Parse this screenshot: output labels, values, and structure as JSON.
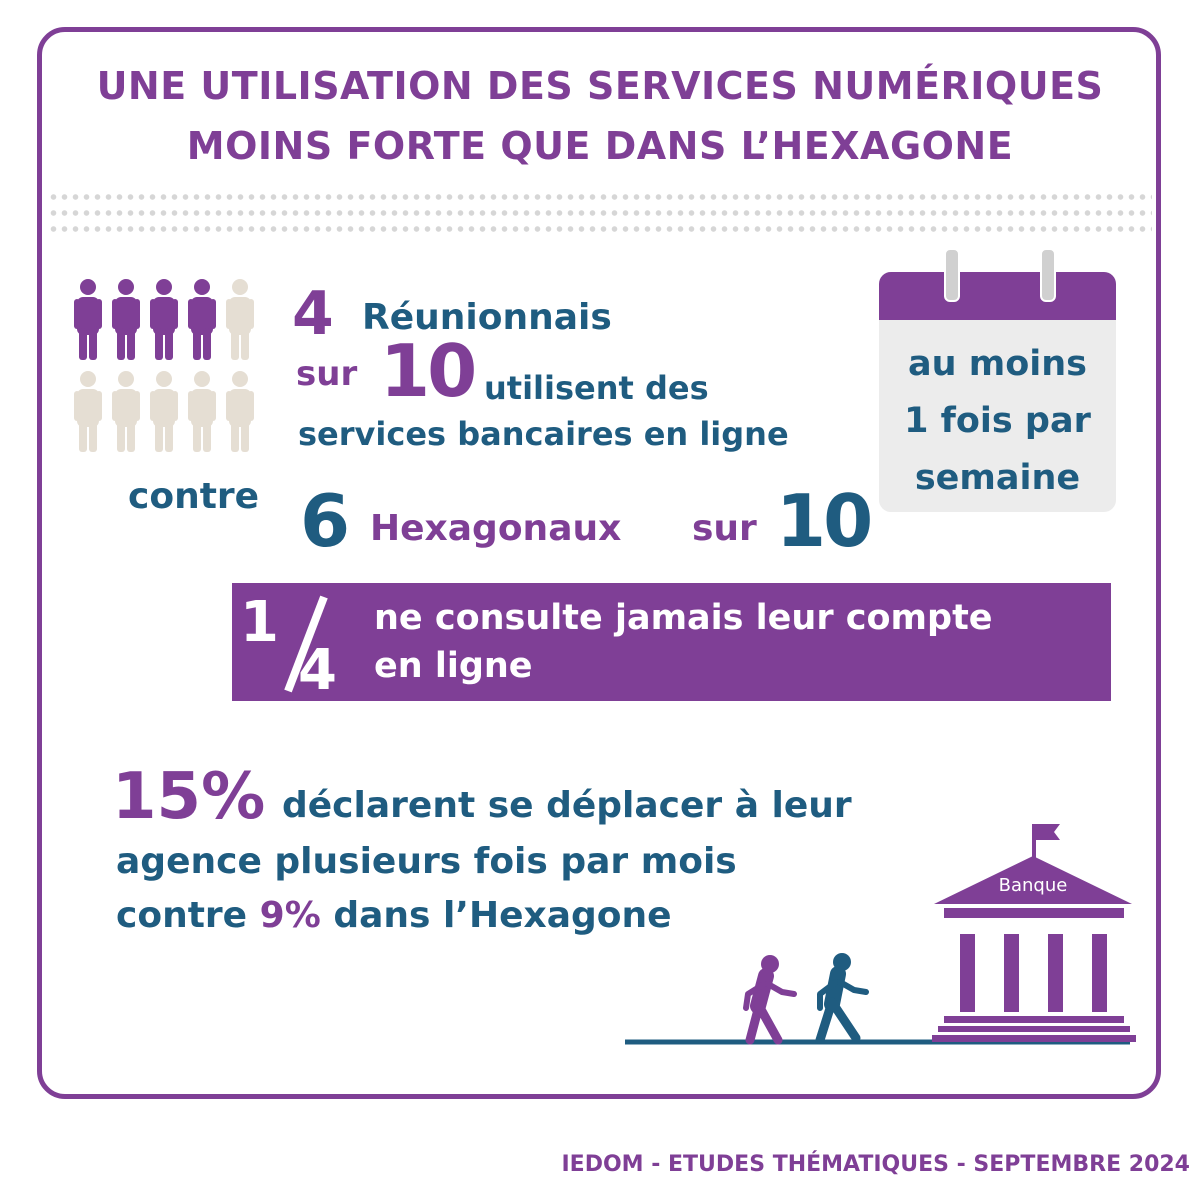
{
  "title": {
    "line1": "UNE UTILISATION DES SERVICES NUMÉRIQUES",
    "line2": "MOINS FORTE QUE DANS L’HEXAGONE"
  },
  "stat1": {
    "number": "4",
    "label": "Réunionnais",
    "sur": "sur",
    "total": "10",
    "verb": "utilisent des",
    "line3": "services bancaires en ligne",
    "contre": "contre",
    "number2": "6",
    "label2": "Hexagonaux",
    "sur2": "sur",
    "total2": "10",
    "pictogram": {
      "highlighted": 4,
      "total": 10
    }
  },
  "calendar": {
    "line1": "au moins",
    "line2": "1 fois par",
    "line3": "semaine"
  },
  "banner": {
    "numerator": "1",
    "denominator": "4",
    "line1": "ne consulte jamais leur compte",
    "line2": "en ligne"
  },
  "stat2": {
    "number": "15%",
    "line1": "déclarent se déplacer à leur",
    "line2": "agence plusieurs fois par mois",
    "line3_pre": "contre",
    "line3_pct": "9%",
    "line3_post": "dans l’Hexagone"
  },
  "bank": {
    "label": "Banque"
  },
  "footer": {
    "text": "IEDOM - ETUDES THÉMATIQUES - SEPTEMBRE 2024"
  },
  "colors": {
    "purple": "#7f3f96",
    "blue": "#1f5c80",
    "beige": "#e5ded3",
    "grey": "#ececec"
  }
}
